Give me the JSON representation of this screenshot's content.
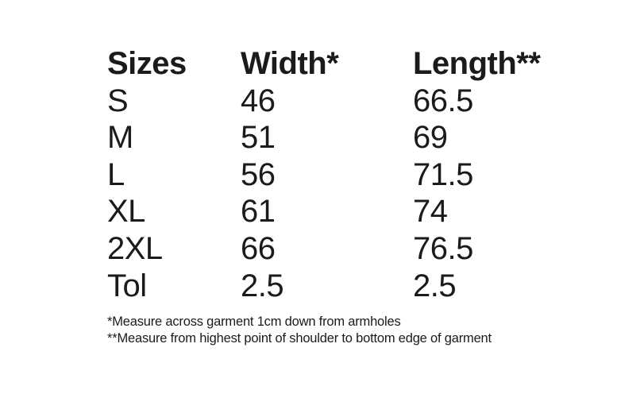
{
  "table": {
    "columns": [
      "Sizes",
      "Width*",
      "Length**"
    ],
    "rows": [
      [
        "S",
        "46",
        "66.5"
      ],
      [
        "M",
        "51",
        "69"
      ],
      [
        "L",
        "56",
        "71.5"
      ],
      [
        "XL",
        "61",
        "74"
      ],
      [
        "2XL",
        "66",
        "76.5"
      ],
      [
        "Tol",
        "2.5",
        "2.5"
      ]
    ]
  },
  "footnotes": [
    "*Measure across garment 1cm down from armholes",
    "**Measure from highest point of shoulder to bottom edge of garment"
  ],
  "colors": {
    "text": "#1b1b1b",
    "background": "#ffffff"
  }
}
